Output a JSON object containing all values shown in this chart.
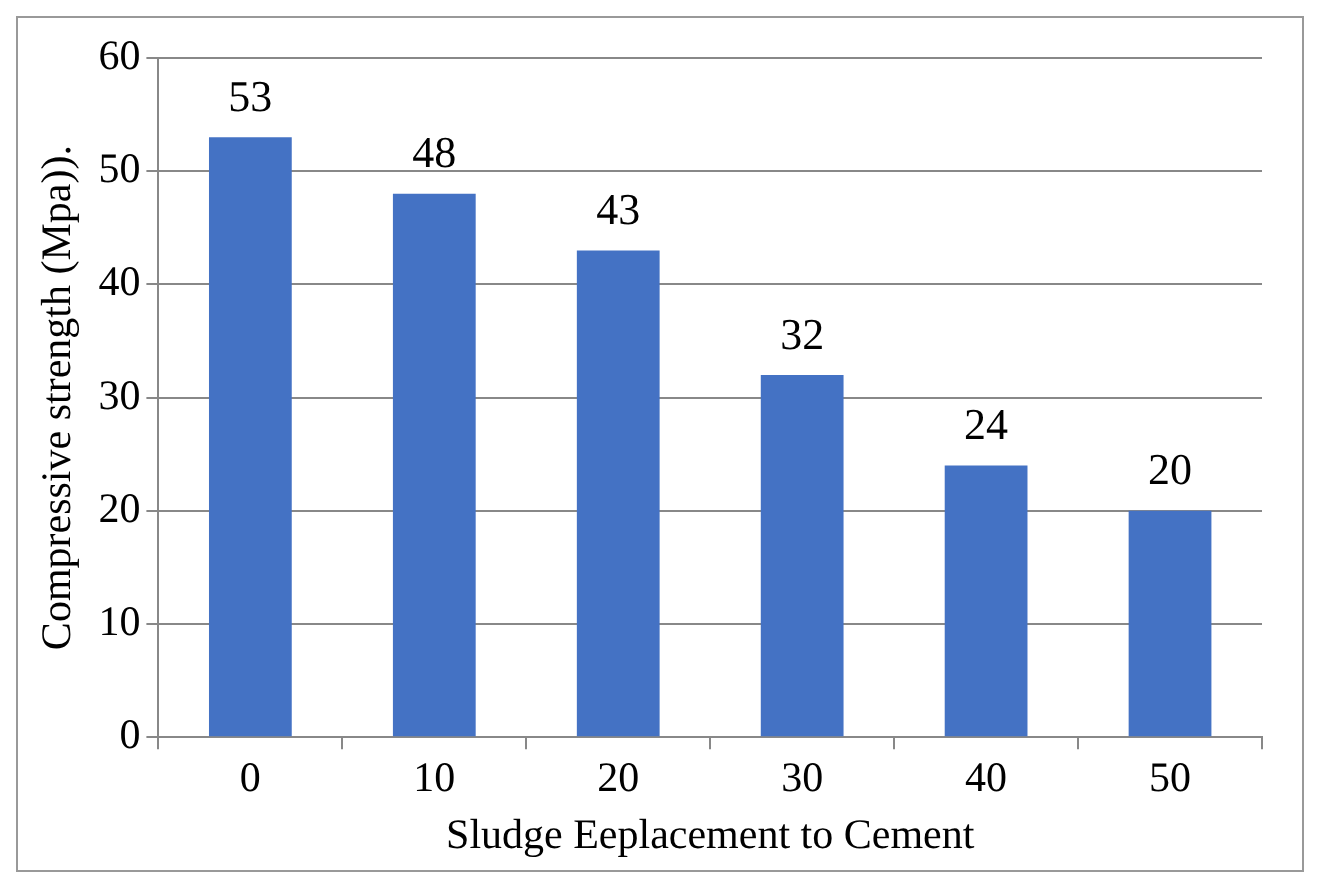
{
  "chart_data": {
    "type": "bar",
    "xlabel": "Sludge Eeplacement to Cement",
    "ylabel": "Compressive strength (Mpa)).",
    "categories": [
      "0",
      "10",
      "20",
      "30",
      "40",
      "50"
    ],
    "values": [
      53,
      48,
      43,
      32,
      24,
      20
    ],
    "color": "#4472c4",
    "ylim": [
      0,
      60
    ],
    "yticks": [
      0,
      10,
      20,
      30,
      40,
      50,
      60
    ],
    "grid": "y",
    "data_labels": true
  }
}
